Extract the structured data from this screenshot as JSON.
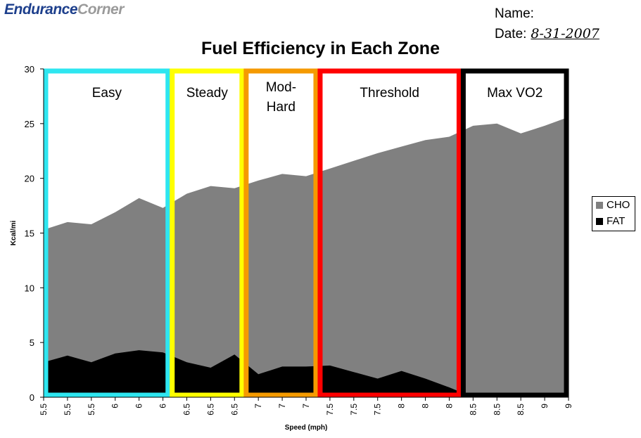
{
  "logo": {
    "part1": "Endurance",
    "part2": "Corner"
  },
  "header": {
    "name_label": "Name:",
    "date_label": "Date:",
    "date_value": "8-31-2007"
  },
  "chart_data": {
    "type": "area",
    "title": "Fuel Efficiency in Each Zone",
    "xlabel": "Speed (mph)",
    "ylabel": "Kcal/mi",
    "ylim": [
      0,
      30
    ],
    "yticks": [
      0,
      5,
      10,
      15,
      20,
      25,
      30
    ],
    "categories": [
      "5.5",
      "5.5",
      "5.5",
      "6",
      "6",
      "6",
      "6.5",
      "6.5",
      "6.5",
      "7",
      "7",
      "7",
      "7.5",
      "7.5",
      "7.5",
      "8",
      "8",
      "8",
      "8.5",
      "8.5",
      "8.5",
      "9",
      "9"
    ],
    "series": [
      {
        "name": "CHO",
        "color": "#808080",
        "values": [
          15.3,
          16.0,
          15.8,
          16.9,
          18.2,
          17.3,
          18.6,
          19.3,
          19.1,
          19.8,
          20.4,
          20.2,
          20.9,
          21.6,
          22.3,
          22.9,
          23.5,
          23.8,
          24.8,
          25.0,
          24.1,
          24.8,
          25.6
        ]
      },
      {
        "name": "FAT",
        "color": "#000000",
        "values": [
          3.2,
          3.8,
          3.2,
          4.0,
          4.3,
          4.1,
          3.2,
          2.7,
          3.9,
          2.1,
          2.8,
          2.8,
          2.9,
          2.3,
          1.7,
          2.4,
          1.7,
          0.9,
          0.0,
          0.0,
          0.0,
          0.0,
          0.0
        ]
      }
    ],
    "zones": [
      {
        "label": "Easy",
        "color": "#2ee6f0",
        "from": 0,
        "to": 5.3
      },
      {
        "label": "Steady",
        "color": "#ffff00",
        "from": 5.3,
        "to": 8.4
      },
      {
        "label": "Mod-\nHard",
        "color": "#f59a00",
        "from": 8.4,
        "to": 11.5
      },
      {
        "label": "Threshold",
        "color": "#ff0000",
        "from": 11.5,
        "to": 17.5
      },
      {
        "label": "Max VO2",
        "color": "#000000",
        "from": 17.5,
        "to": 22
      }
    ],
    "legend": {
      "position": "right",
      "entries": [
        "CHO",
        "FAT"
      ]
    },
    "grid": false
  }
}
